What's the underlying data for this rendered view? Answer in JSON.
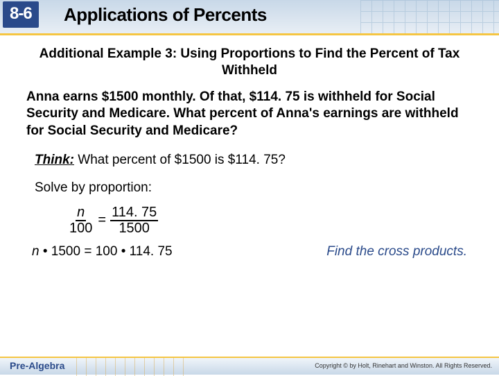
{
  "header": {
    "lesson_number": "8-6",
    "title": "Applications of Percents",
    "badge_bg": "#2a4a8a",
    "underline_color": "#f5c542"
  },
  "example": {
    "title": "Additional Example 3: Using Proportions to Find the Percent of Tax Withheld",
    "problem": "Anna earns $1500 monthly. Of that, $114. 75 is withheld for Social Security and Medicare. What percent of Anna's earnings are withheld for Social Security and Medicare?",
    "think_label": "Think:",
    "think_text": " What percent of $1500 is $114. 75?",
    "solve_text": "Solve by proportion:",
    "proportion": {
      "left_num": "n",
      "left_den": "100",
      "right_num": "114. 75",
      "right_den": "1500",
      "equals": "="
    },
    "cross_eq_prefix": "n",
    "cross_eq_rest": " • 1500 = 100 • 114. 75",
    "cross_note": "Find the cross products."
  },
  "footer": {
    "label": "Pre-Algebra",
    "copyright": "Copyright © by Holt, Rinehart and Winston. All Rights Reserved."
  }
}
